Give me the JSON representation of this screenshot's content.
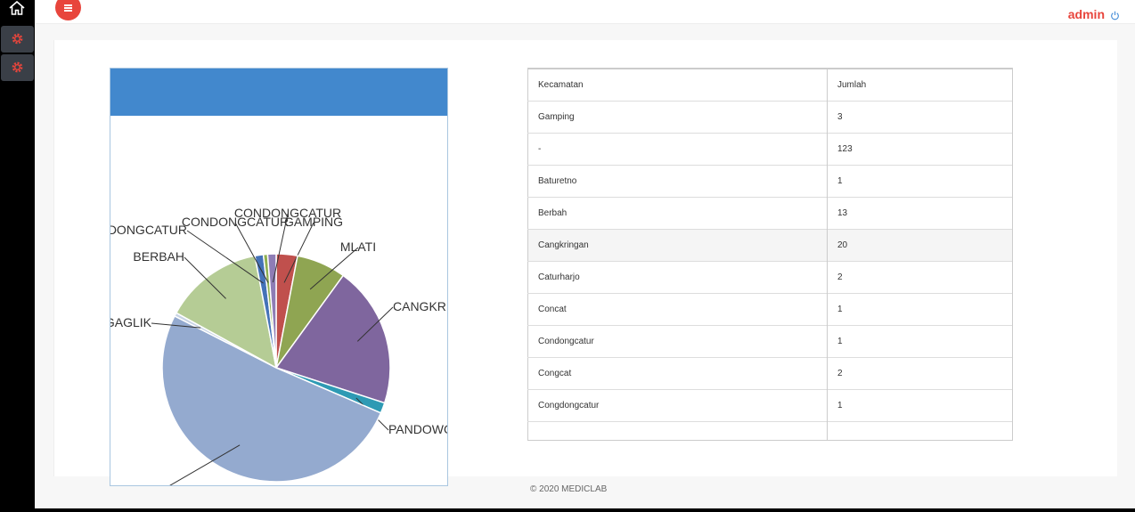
{
  "header": {
    "user": "admin",
    "menu_icon": "hamburger-menu-icon",
    "power_icon": "power-icon",
    "home_icon": "home-icon",
    "settings_icon": "gear-icon"
  },
  "table": {
    "headers": [
      "Kecamatan",
      "Jumlah"
    ],
    "rows": [
      [
        "Gamping",
        "3"
      ],
      [
        "-",
        "123"
      ],
      [
        "Baturetno",
        "1"
      ],
      [
        "Berbah",
        "13"
      ],
      [
        "Cangkringan",
        "20"
      ],
      [
        "Caturharjo",
        "2"
      ],
      [
        "Concat",
        "1"
      ],
      [
        "Condongcatur",
        "1"
      ],
      [
        "Congcat",
        "2"
      ],
      [
        "Congdongcatur",
        "1"
      ]
    ]
  },
  "footer": {
    "text": "© 2020 MEDICLAB"
  },
  "colors": {
    "accent_red": "#e8453c",
    "header_blue": "#4288cd"
  },
  "chart_data": {
    "type": "pie",
    "start_angle_deg": 0,
    "slices": [
      {
        "label": "GAMPING",
        "value": 3,
        "color": "#c0504d"
      },
      {
        "label": "MLATI",
        "value": 7,
        "color": "#8fa552"
      },
      {
        "label": "CANGKRI",
        "value": 20,
        "color": "#7f669e"
      },
      {
        "label": "PANDOWO",
        "value": 1.5,
        "color": "#2e9ab4"
      },
      {
        "label": "-",
        "value": 51,
        "color": "#94aacf"
      },
      {
        "label": "GAGLIK",
        "value": 0.5,
        "color": "#c7d3e4"
      },
      {
        "label": "BERBAH",
        "value": 14,
        "color": "#b5cc95"
      },
      {
        "label": "CONDONGCATUR",
        "value": 1.2,
        "color": "#4472b8"
      },
      {
        "label": "CONDONGCATUR",
        "value": 0.6,
        "color": "#8fb052"
      },
      {
        "label": "CONDONGCATUR",
        "value": 1.2,
        "color": "#8e7db5"
      }
    ]
  }
}
